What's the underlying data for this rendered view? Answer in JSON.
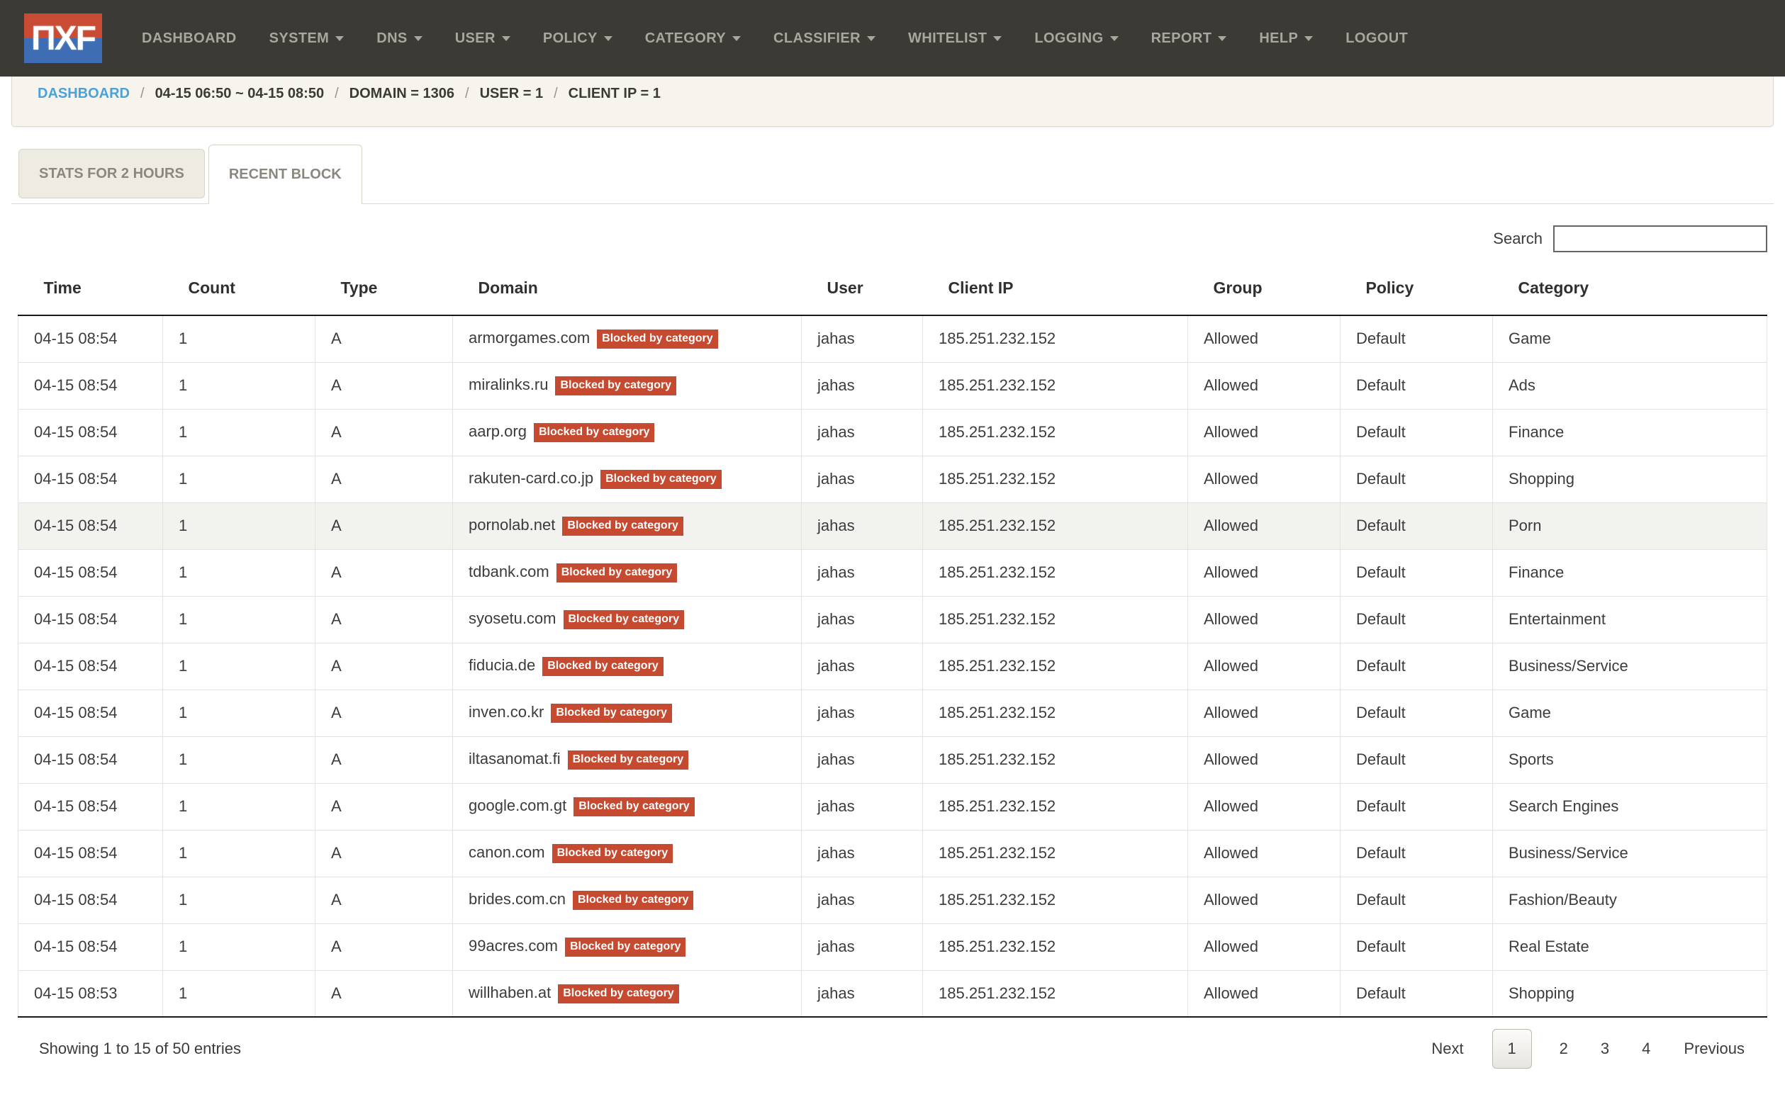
{
  "navbar": {
    "logo_text": "ΠXF",
    "items": [
      {
        "label": "DASHBOARD",
        "dropdown": false
      },
      {
        "label": "SYSTEM",
        "dropdown": true
      },
      {
        "label": "DNS",
        "dropdown": true
      },
      {
        "label": "USER",
        "dropdown": true
      },
      {
        "label": "POLICY",
        "dropdown": true
      },
      {
        "label": "CATEGORY",
        "dropdown": true
      },
      {
        "label": "CLASSIFIER",
        "dropdown": true
      },
      {
        "label": "WHITELIST",
        "dropdown": true
      },
      {
        "label": "LOGGING",
        "dropdown": true
      },
      {
        "label": "REPORT",
        "dropdown": true
      },
      {
        "label": "HELP",
        "dropdown": true
      },
      {
        "label": "LOGOUT",
        "dropdown": false
      }
    ]
  },
  "breadcrumb": {
    "link": "DASHBOARD",
    "separator": "/",
    "segments": [
      "04-15 06:50 ~ 04-15 08:50",
      "DOMAIN = 1306",
      "USER = 1",
      "CLIENT IP = 1"
    ]
  },
  "tabs": [
    {
      "label": "STATS FOR 2 HOURS",
      "active": false
    },
    {
      "label": "RECENT BLOCK",
      "active": true
    }
  ],
  "search": {
    "label": "Search",
    "value": "",
    "placeholder": ""
  },
  "table": {
    "columns": [
      "Time",
      "Count",
      "Type",
      "Domain",
      "User",
      "Client IP",
      "Group",
      "Policy",
      "Category"
    ],
    "badge_label": "Blocked by category",
    "rows": [
      {
        "time": "04-15 08:54",
        "count": "1",
        "type": "A",
        "domain": "armorgames.com",
        "user": "jahas",
        "client_ip": "185.251.232.152",
        "group": "Allowed",
        "policy": "Default",
        "category": "Game",
        "highlighted": false
      },
      {
        "time": "04-15 08:54",
        "count": "1",
        "type": "A",
        "domain": "miralinks.ru",
        "user": "jahas",
        "client_ip": "185.251.232.152",
        "group": "Allowed",
        "policy": "Default",
        "category": "Ads",
        "highlighted": false
      },
      {
        "time": "04-15 08:54",
        "count": "1",
        "type": "A",
        "domain": "aarp.org",
        "user": "jahas",
        "client_ip": "185.251.232.152",
        "group": "Allowed",
        "policy": "Default",
        "category": "Finance",
        "highlighted": false
      },
      {
        "time": "04-15 08:54",
        "count": "1",
        "type": "A",
        "domain": "rakuten-card.co.jp",
        "user": "jahas",
        "client_ip": "185.251.232.152",
        "group": "Allowed",
        "policy": "Default",
        "category": "Shopping",
        "highlighted": false
      },
      {
        "time": "04-15 08:54",
        "count": "1",
        "type": "A",
        "domain": "pornolab.net",
        "user": "jahas",
        "client_ip": "185.251.232.152",
        "group": "Allowed",
        "policy": "Default",
        "category": "Porn",
        "highlighted": true
      },
      {
        "time": "04-15 08:54",
        "count": "1",
        "type": "A",
        "domain": "tdbank.com",
        "user": "jahas",
        "client_ip": "185.251.232.152",
        "group": "Allowed",
        "policy": "Default",
        "category": "Finance",
        "highlighted": false
      },
      {
        "time": "04-15 08:54",
        "count": "1",
        "type": "A",
        "domain": "syosetu.com",
        "user": "jahas",
        "client_ip": "185.251.232.152",
        "group": "Allowed",
        "policy": "Default",
        "category": "Entertainment",
        "highlighted": false
      },
      {
        "time": "04-15 08:54",
        "count": "1",
        "type": "A",
        "domain": "fiducia.de",
        "user": "jahas",
        "client_ip": "185.251.232.152",
        "group": "Allowed",
        "policy": "Default",
        "category": "Business/Service",
        "highlighted": false
      },
      {
        "time": "04-15 08:54",
        "count": "1",
        "type": "A",
        "domain": "inven.co.kr",
        "user": "jahas",
        "client_ip": "185.251.232.152",
        "group": "Allowed",
        "policy": "Default",
        "category": "Game",
        "highlighted": false
      },
      {
        "time": "04-15 08:54",
        "count": "1",
        "type": "A",
        "domain": "iltasanomat.fi",
        "user": "jahas",
        "client_ip": "185.251.232.152",
        "group": "Allowed",
        "policy": "Default",
        "category": "Sports",
        "highlighted": false
      },
      {
        "time": "04-15 08:54",
        "count": "1",
        "type": "A",
        "domain": "google.com.gt",
        "user": "jahas",
        "client_ip": "185.251.232.152",
        "group": "Allowed",
        "policy": "Default",
        "category": "Search Engines",
        "highlighted": false
      },
      {
        "time": "04-15 08:54",
        "count": "1",
        "type": "A",
        "domain": "canon.com",
        "user": "jahas",
        "client_ip": "185.251.232.152",
        "group": "Allowed",
        "policy": "Default",
        "category": "Business/Service",
        "highlighted": false
      },
      {
        "time": "04-15 08:54",
        "count": "1",
        "type": "A",
        "domain": "brides.com.cn",
        "user": "jahas",
        "client_ip": "185.251.232.152",
        "group": "Allowed",
        "policy": "Default",
        "category": "Fashion/Beauty",
        "highlighted": false
      },
      {
        "time": "04-15 08:54",
        "count": "1",
        "type": "A",
        "domain": "99acres.com",
        "user": "jahas",
        "client_ip": "185.251.232.152",
        "group": "Allowed",
        "policy": "Default",
        "category": "Real Estate",
        "highlighted": false
      },
      {
        "time": "04-15 08:53",
        "count": "1",
        "type": "A",
        "domain": "willhaben.at",
        "user": "jahas",
        "client_ip": "185.251.232.152",
        "group": "Allowed",
        "policy": "Default",
        "category": "Shopping",
        "highlighted": false
      }
    ]
  },
  "footer": {
    "showing": "Showing 1 to 15 of 50 entries",
    "pagination": {
      "next": "Next",
      "pages": [
        "1",
        "2",
        "3",
        "4"
      ],
      "active_page": "1",
      "previous": "Previous"
    }
  },
  "colors": {
    "navbar_bg": "#3b3a35",
    "logo_red": "#c94b33",
    "logo_blue": "#3f6db4",
    "breadcrumb_link_blue": "#4aa2d9",
    "badge_red": "#c64a2f"
  }
}
